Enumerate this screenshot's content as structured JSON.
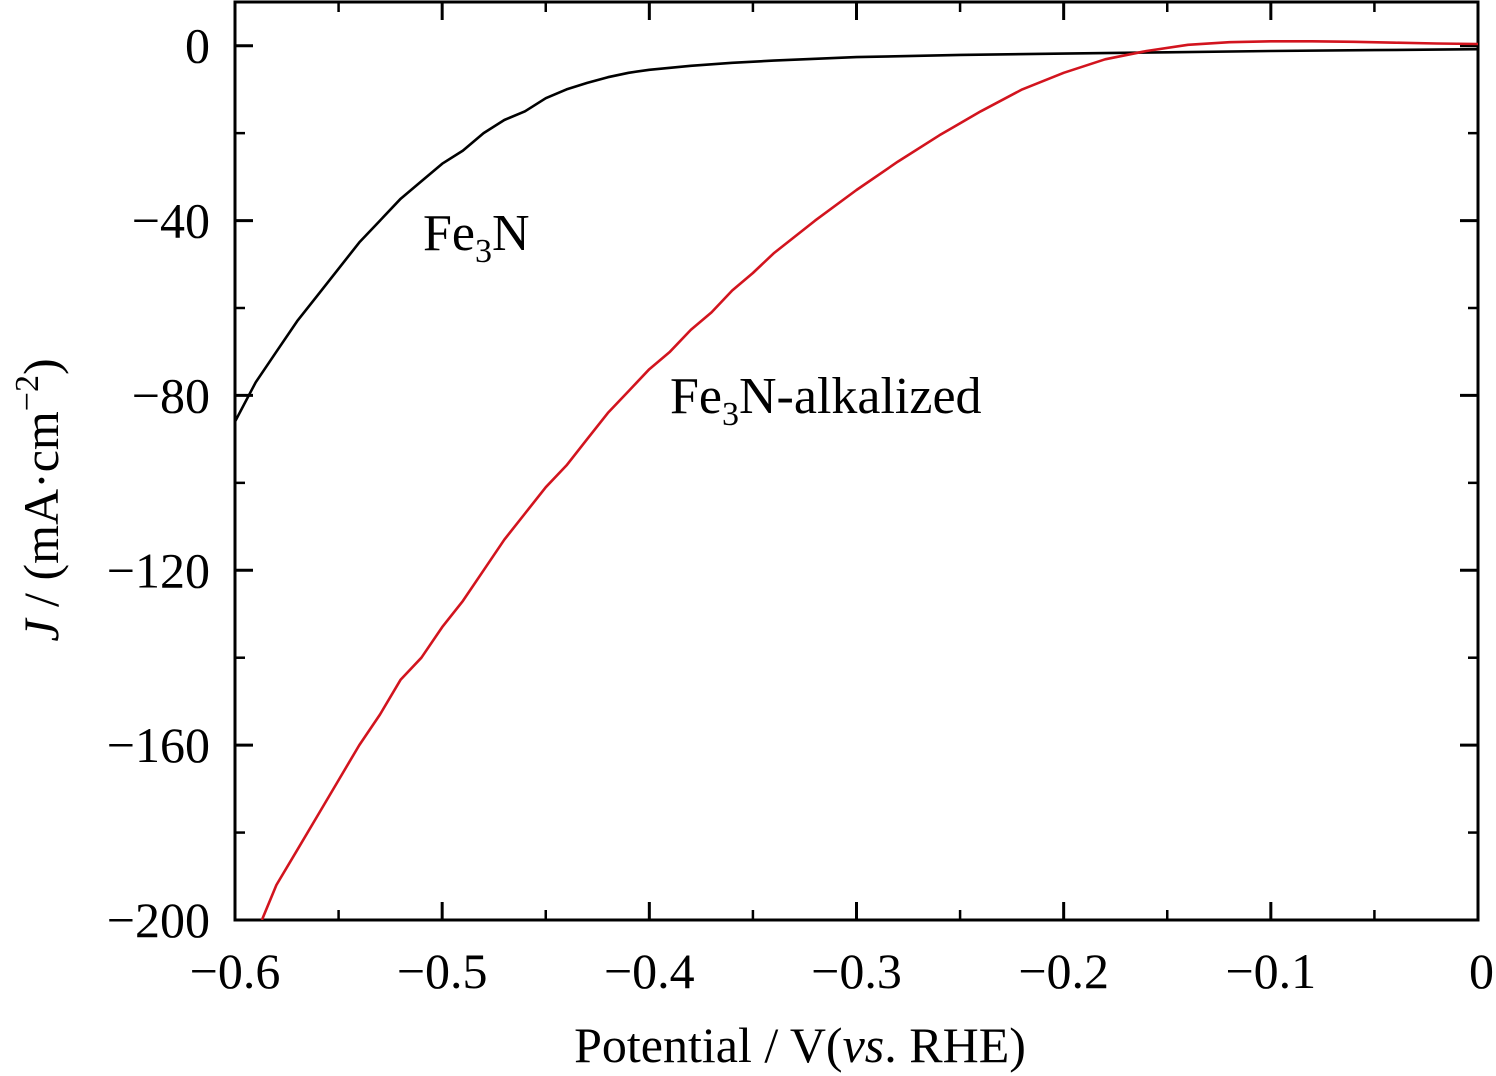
{
  "chart_data": {
    "type": "line",
    "xlabel": {
      "pre": "Potential / V(",
      "italic": "vs",
      "post": ". RHE)"
    },
    "ylabel": {
      "italic": "J",
      "pre": " / (mA·cm",
      "sup": "−2",
      "post": ")"
    },
    "xlim": [
      -0.6,
      0
    ],
    "ylim": [
      -200,
      10
    ],
    "x_ticks": [
      -0.6,
      -0.5,
      -0.4,
      -0.3,
      -0.2,
      -0.1,
      0
    ],
    "x_tick_labels": [
      "−0.6",
      "−0.5",
      "−0.4",
      "−0.3",
      "−0.2",
      "−0.1",
      "0"
    ],
    "y_ticks": [
      0,
      -40,
      -80,
      -120,
      -160,
      -200
    ],
    "y_tick_labels": [
      "0",
      "−40",
      "−80",
      "−120",
      "−160",
      "−200"
    ],
    "grid": false,
    "series": [
      {
        "name": "Fe3N",
        "label": {
          "base": "Fe",
          "sub": "3",
          "rest": "N"
        },
        "color": "#000000",
        "x": [
          -0.6,
          -0.59,
          -0.58,
          -0.57,
          -0.56,
          -0.55,
          -0.54,
          -0.53,
          -0.52,
          -0.51,
          -0.5,
          -0.49,
          -0.48,
          -0.47,
          -0.46,
          -0.45,
          -0.44,
          -0.43,
          -0.42,
          -0.41,
          -0.4,
          -0.38,
          -0.36,
          -0.34,
          -0.32,
          -0.3,
          -0.25,
          -0.2,
          -0.15,
          -0.1,
          -0.05,
          0
        ],
        "y": [
          -86,
          -77,
          -70,
          -63,
          -57,
          -51,
          -45,
          -40,
          -35,
          -31,
          -27,
          -24,
          -20,
          -17,
          -15,
          -12,
          -10,
          -8.5,
          -7.2,
          -6.2,
          -5.5,
          -4.6,
          -3.9,
          -3.4,
          -3.0,
          -2.6,
          -2.1,
          -1.8,
          -1.5,
          -1.2,
          -1.0,
          -0.8
        ]
      },
      {
        "name": "Fe3N-alkalized",
        "label": {
          "base": "Fe",
          "sub": "3",
          "rest": "N-alkalized"
        },
        "color": "#d2141e",
        "x": [
          -0.587,
          -0.58,
          -0.57,
          -0.56,
          -0.55,
          -0.54,
          -0.53,
          -0.52,
          -0.51,
          -0.5,
          -0.49,
          -0.48,
          -0.47,
          -0.46,
          -0.45,
          -0.44,
          -0.43,
          -0.42,
          -0.41,
          -0.4,
          -0.39,
          -0.38,
          -0.37,
          -0.36,
          -0.35,
          -0.34,
          -0.32,
          -0.3,
          -0.28,
          -0.26,
          -0.24,
          -0.22,
          -0.2,
          -0.18,
          -0.16,
          -0.14,
          -0.12,
          -0.1,
          -0.08,
          -0.06,
          -0.04,
          -0.02,
          0
        ],
        "y": [
          -200,
          -192,
          -184,
          -176,
          -168,
          -160,
          -153,
          -145,
          -140,
          -133,
          -127,
          -120,
          -113,
          -107,
          -101,
          -96,
          -90,
          -84,
          -79,
          -74,
          -70,
          -65,
          -61,
          -56,
          -52,
          -47.5,
          -40,
          -33,
          -26.5,
          -20.5,
          -15,
          -10,
          -6.2,
          -3.1,
          -1.2,
          0.2,
          0.8,
          1.0,
          1.0,
          0.9,
          0.7,
          0.5,
          0.4
        ]
      }
    ]
  }
}
